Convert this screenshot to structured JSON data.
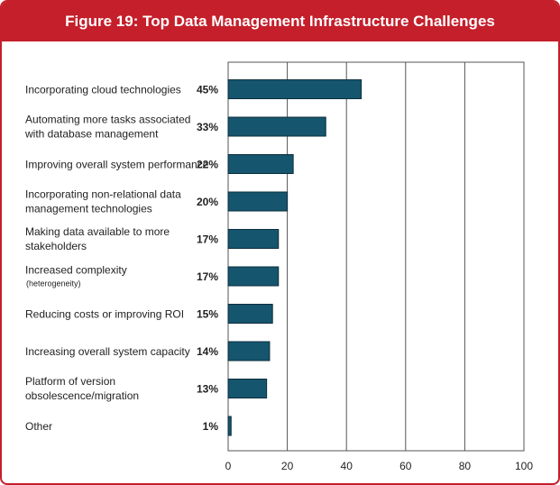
{
  "header": {
    "title": "Figure 19: Top Data Management Infrastructure Challenges"
  },
  "chart_data": {
    "type": "bar",
    "orientation": "horizontal",
    "title": "Figure 19: Top Data Management Infrastructure Challenges",
    "categories": [
      {
        "lines": [
          "Incorporating cloud technologies"
        ]
      },
      {
        "lines": [
          "Automating more tasks associated",
          "with database management"
        ]
      },
      {
        "lines": [
          "Improving overall system performance"
        ]
      },
      {
        "lines": [
          "Incorporating non-relational data",
          "management technologies"
        ]
      },
      {
        "lines": [
          "Making data available to more",
          "stakeholders"
        ]
      },
      {
        "lines": [
          "Increased complexity"
        ],
        "sub": "(heterogeneity)"
      },
      {
        "lines": [
          "Reducing costs or improving ROI"
        ]
      },
      {
        "lines": [
          "Increasing overall system capacity"
        ]
      },
      {
        "lines": [
          "Platform of version",
          "obsolescence/migration"
        ]
      },
      {
        "lines": [
          "Other"
        ]
      }
    ],
    "values": [
      45,
      33,
      22,
      20,
      17,
      17,
      15,
      14,
      13,
      1
    ],
    "value_labels": [
      "45%",
      "33%",
      "22%",
      "20%",
      "17%",
      "17%",
      "15%",
      "14%",
      "13%",
      "1%"
    ],
    "xlim": [
      0,
      100
    ],
    "xticks": [
      0,
      20,
      40,
      60,
      80,
      100
    ],
    "grid": true,
    "colors": {
      "bar": "#16556e",
      "frame": "#c41f2b"
    }
  }
}
